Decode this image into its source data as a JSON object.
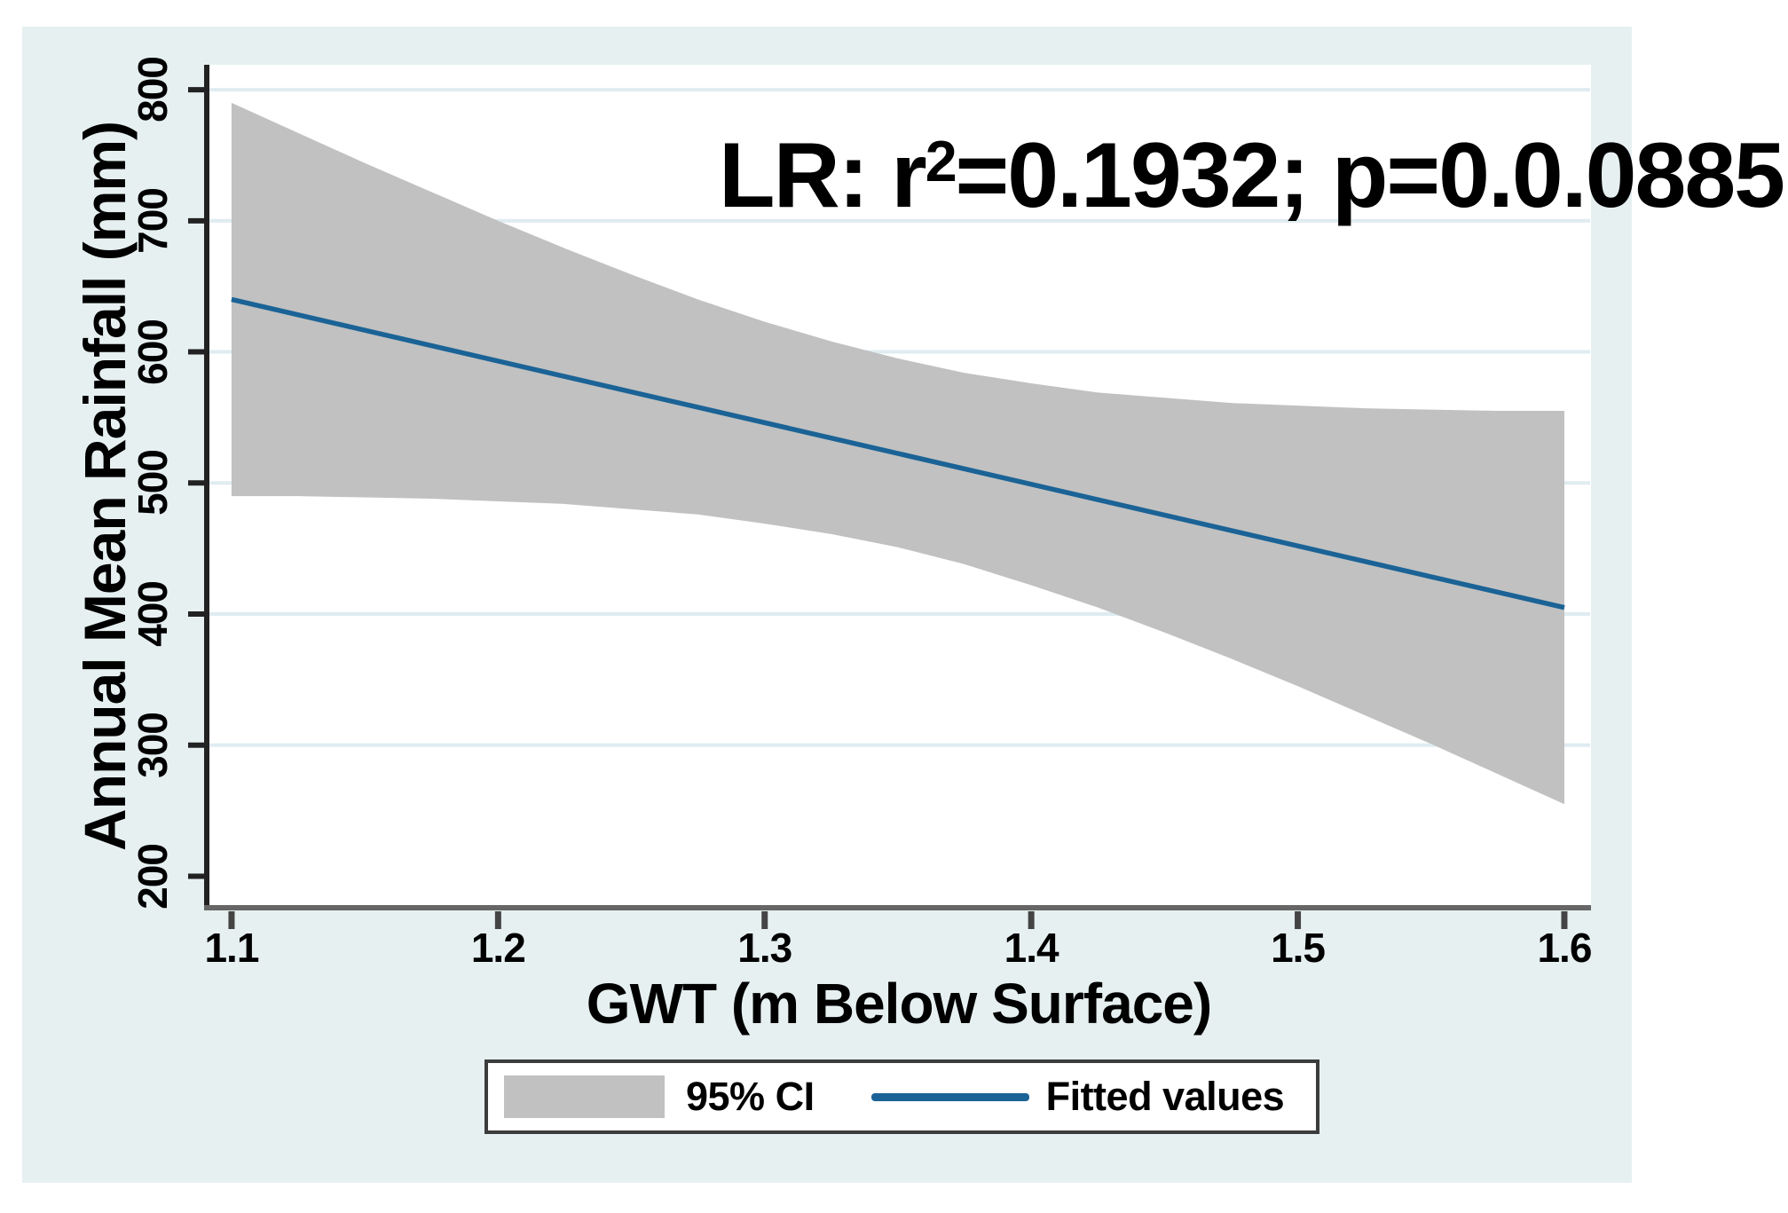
{
  "figure": {
    "background_color": "#e7f0f1",
    "plot_background": "#ffffff",
    "gridline_color": "#dfecf1",
    "y_axis_color": "#222222",
    "x_axis_color": "#666666",
    "tick_color": "#444444"
  },
  "annotation": {
    "prefix": "LR: r",
    "sup": "2",
    "suffix": "=0.1932; p=0.0.0885"
  },
  "axes": {
    "x_title": "GWT (m Below Surface)",
    "y_title": "Annual Mean Rainfall (mm)"
  },
  "legend": {
    "ci_label": "95% CI",
    "ci_color": "#c1c1c1",
    "line_label": "Fitted values",
    "line_color": "#1b6396"
  },
  "chart_data": {
    "type": "line",
    "title": "",
    "xlabel": "GWT (m Below Surface)",
    "ylabel": "Annual Mean Rainfall (mm)",
    "annotation_text": "LR: r²=0.1932; p=0.0.0885",
    "xlim": [
      1.0907,
      1.61
    ],
    "ylim": [
      176,
      819
    ],
    "x_ticks": [
      1.1,
      1.2,
      1.3,
      1.4,
      1.5,
      1.6
    ],
    "x_tick_labels": [
      "1.1",
      "1.2",
      "1.3",
      "1.4",
      "1.5",
      "1.6"
    ],
    "y_ticks": [
      200,
      300,
      400,
      500,
      600,
      700,
      800
    ],
    "y_tick_labels": [
      "200",
      "300",
      "400",
      "500",
      "600",
      "700",
      "800"
    ],
    "gridline_y_values": [
      300,
      400,
      500,
      600,
      700,
      800
    ],
    "grid": true,
    "legend_position": "bottom",
    "series": [
      {
        "name": "Fitted values",
        "type": "line",
        "color": "#1b6396",
        "x": [
          1.1,
          1.6
        ],
        "y": [
          640,
          405
        ]
      },
      {
        "name": "95% CI",
        "type": "area",
        "color": "#c1c1c1",
        "x": [
          1.1,
          1.125,
          1.15,
          1.175,
          1.2,
          1.225,
          1.25,
          1.275,
          1.3,
          1.325,
          1.35,
          1.375,
          1.4,
          1.425,
          1.45,
          1.475,
          1.5,
          1.525,
          1.55,
          1.575,
          1.6
        ],
        "upper": [
          790,
          767,
          744,
          722,
          700,
          679,
          659,
          640,
          623,
          608,
          595,
          584,
          576,
          569,
          565,
          561,
          559,
          557,
          556,
          555,
          555
        ],
        "lower": [
          490,
          490,
          489,
          488,
          486,
          484,
          480,
          476,
          469,
          461,
          451,
          438,
          422,
          405,
          386,
          366,
          345,
          323,
          301,
          278,
          255
        ]
      }
    ]
  }
}
